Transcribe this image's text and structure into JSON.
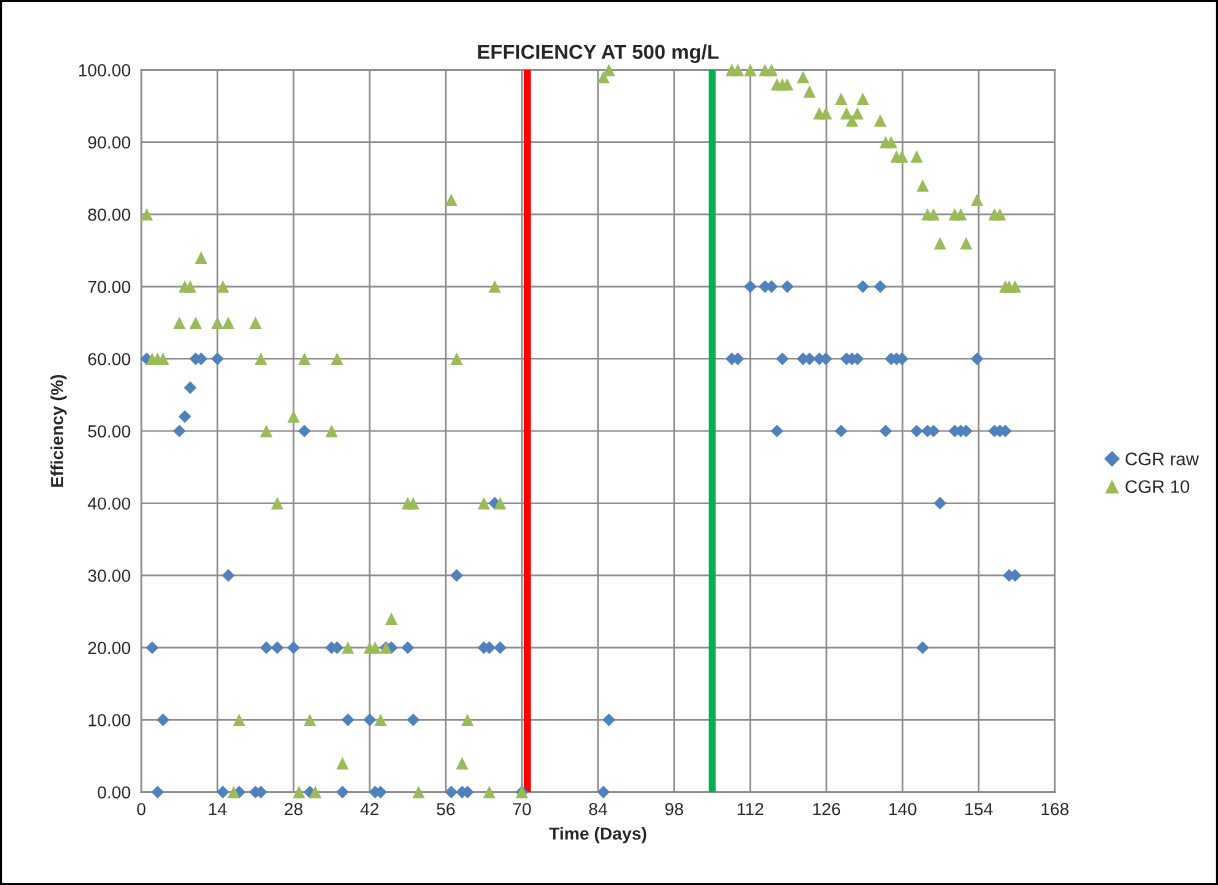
{
  "chart_data": {
    "type": "scatter",
    "title": "EFFICIENCY AT 500 mg/L",
    "xlabel": "Time (Days)",
    "ylabel": "Efficiency (%)",
    "x": [
      1,
      2,
      3,
      4,
      7,
      8,
      9,
      10,
      11,
      14,
      15,
      16,
      17,
      18,
      21,
      22,
      23,
      25,
      28,
      29,
      30,
      31,
      32,
      35,
      36,
      37,
      38,
      42,
      43,
      44,
      45,
      46,
      49,
      50,
      51,
      57,
      58,
      59,
      60,
      63,
      64,
      65,
      66,
      70,
      85,
      86,
      108.6,
      109.7,
      112.0,
      114.7,
      115.9,
      116.9,
      117.9,
      118.8,
      121.7,
      122.9,
      124.7,
      125.9,
      128.7,
      129.7,
      130.7,
      131.7,
      132.7,
      135.9,
      136.9,
      137.9,
      138.9,
      139.9,
      142.6,
      143.7,
      144.6,
      145.7,
      146.9,
      149.6,
      150.7,
      151.7,
      153.7,
      156.9,
      157.9,
      158.9,
      159.6,
      160.7
    ],
    "series": [
      {
        "name": "CGR raw",
        "color": "#4f81bd",
        "marker": "diamond",
        "values": [
          60,
          20,
          0,
          10,
          50,
          52,
          56,
          60,
          60,
          60,
          0,
          30,
          null,
          0,
          0,
          0,
          20,
          20,
          20,
          null,
          50,
          0,
          null,
          20,
          20,
          0,
          10,
          10,
          0,
          0,
          20,
          20,
          20,
          10,
          null,
          0,
          30,
          0,
          0,
          20,
          20,
          40,
          20,
          0,
          0,
          10,
          60,
          60,
          70,
          70,
          70,
          50,
          60,
          70,
          60,
          60,
          60,
          60,
          50,
          60,
          60,
          60,
          70,
          70,
          50,
          60,
          60,
          60,
          50,
          20,
          50,
          50,
          40,
          50,
          50,
          50,
          60,
          50,
          50,
          50,
          30,
          30
        ]
      },
      {
        "name": "CGR 10",
        "color": "#9bbb59",
        "marker": "triangle",
        "values": [
          80,
          60,
          60,
          60,
          65,
          70,
          70,
          65,
          74,
          65,
          70,
          65,
          0,
          10,
          65,
          60,
          50,
          40,
          52,
          0,
          60,
          10,
          0,
          50,
          60,
          4,
          20,
          20,
          20,
          10,
          20,
          24,
          40,
          40,
          0,
          82,
          60,
          4,
          10,
          40,
          0,
          70,
          40,
          0,
          99,
          100,
          100,
          100,
          100,
          100,
          100,
          98,
          98,
          98,
          99,
          97,
          94,
          94,
          96,
          94,
          93,
          94,
          96,
          93,
          90,
          90,
          88,
          88,
          88,
          84,
          80,
          80,
          76,
          80,
          80,
          76,
          82,
          80,
          80,
          70,
          70,
          70
        ]
      }
    ],
    "xlim": [
      0,
      168
    ],
    "xticks": [
      0,
      14,
      28,
      42,
      56,
      70,
      84,
      98,
      112,
      126,
      140,
      154,
      168
    ],
    "ylim": [
      0,
      100
    ],
    "yticks": [
      {
        "value": 0,
        "label": "0.00"
      },
      {
        "value": 10,
        "label": "10.00"
      },
      {
        "value": 20,
        "label": "20.00"
      },
      {
        "value": 30,
        "label": "30.00"
      },
      {
        "value": 40,
        "label": "40.00"
      },
      {
        "value": 50,
        "label": "50.00"
      },
      {
        "value": 60,
        "label": "60.00"
      },
      {
        "value": 70,
        "label": "70.00"
      },
      {
        "value": 80,
        "label": "80.00"
      },
      {
        "value": 90,
        "label": "90.00"
      },
      {
        "value": 100,
        "label": "100.00"
      }
    ],
    "ref_lines": [
      {
        "axis": "x",
        "value": 71,
        "color": "#ff0000"
      },
      {
        "axis": "x",
        "value": 105,
        "color": "#00b050"
      }
    ],
    "grid": true,
    "legend": "right"
  }
}
